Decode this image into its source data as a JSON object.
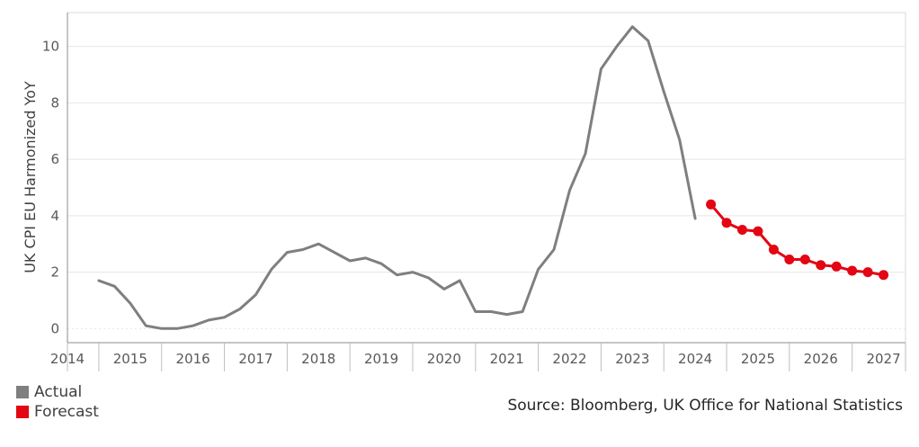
{
  "chart_data": {
    "type": "line",
    "ylabel": "UK CPI EU Harmonized YoY",
    "xlabel": "",
    "xlim": [
      2014.0,
      2027.35
    ],
    "ylim": [
      -0.5,
      11.2
    ],
    "yticks": [
      0,
      2,
      4,
      6,
      8,
      10
    ],
    "xticks": [
      "2014",
      "2015",
      "2016",
      "2017",
      "2018",
      "2019",
      "2020",
      "2021",
      "2022",
      "2023",
      "2024",
      "2025",
      "2026",
      "2027"
    ],
    "grid": true,
    "legend_position": "bottom-left",
    "series": [
      {
        "name": "Actual",
        "color": "#7f7f7f",
        "marker": false,
        "x": [
          2014.5,
          2014.75,
          2015.0,
          2015.25,
          2015.5,
          2015.75,
          2016.0,
          2016.25,
          2016.5,
          2016.75,
          2017.0,
          2017.25,
          2017.5,
          2017.75,
          2018.0,
          2018.25,
          2018.5,
          2018.75,
          2019.0,
          2019.25,
          2019.5,
          2019.75,
          2020.0,
          2020.25,
          2020.5,
          2020.75,
          2021.0,
          2021.25,
          2021.5,
          2021.75,
          2022.0,
          2022.25,
          2022.5,
          2022.75,
          2023.0,
          2023.25,
          2023.5,
          2023.75,
          2024.0
        ],
        "values": [
          1.7,
          1.5,
          0.9,
          0.1,
          0.0,
          0.0,
          0.1,
          0.3,
          0.4,
          0.7,
          1.2,
          2.1,
          2.7,
          2.8,
          3.0,
          2.7,
          2.4,
          2.5,
          2.3,
          1.9,
          2.0,
          1.8,
          1.4,
          1.7,
          0.6,
          0.6,
          0.5,
          0.6,
          2.1,
          2.8,
          4.9,
          6.2,
          9.2,
          10.0,
          10.7,
          10.2,
          8.4,
          6.7,
          3.9
        ]
      },
      {
        "name": "Forecast",
        "color": "#e30613",
        "marker": true,
        "x": [
          2024.25,
          2024.5,
          2024.75,
          2025.0,
          2025.25,
          2025.5,
          2025.75,
          2026.0,
          2026.25,
          2026.5,
          2026.75,
          2027.0
        ],
        "values": [
          4.4,
          3.75,
          3.5,
          3.45,
          2.8,
          2.45,
          2.45,
          2.25,
          2.2,
          2.05,
          2.0,
          1.9
        ]
      }
    ]
  },
  "legend": {
    "items": [
      {
        "label": "Actual",
        "color": "#7f7f7f"
      },
      {
        "label": "Forecast",
        "color": "#e30613"
      }
    ]
  },
  "source": "Source: Bloomberg, UK Office for National Statistics"
}
